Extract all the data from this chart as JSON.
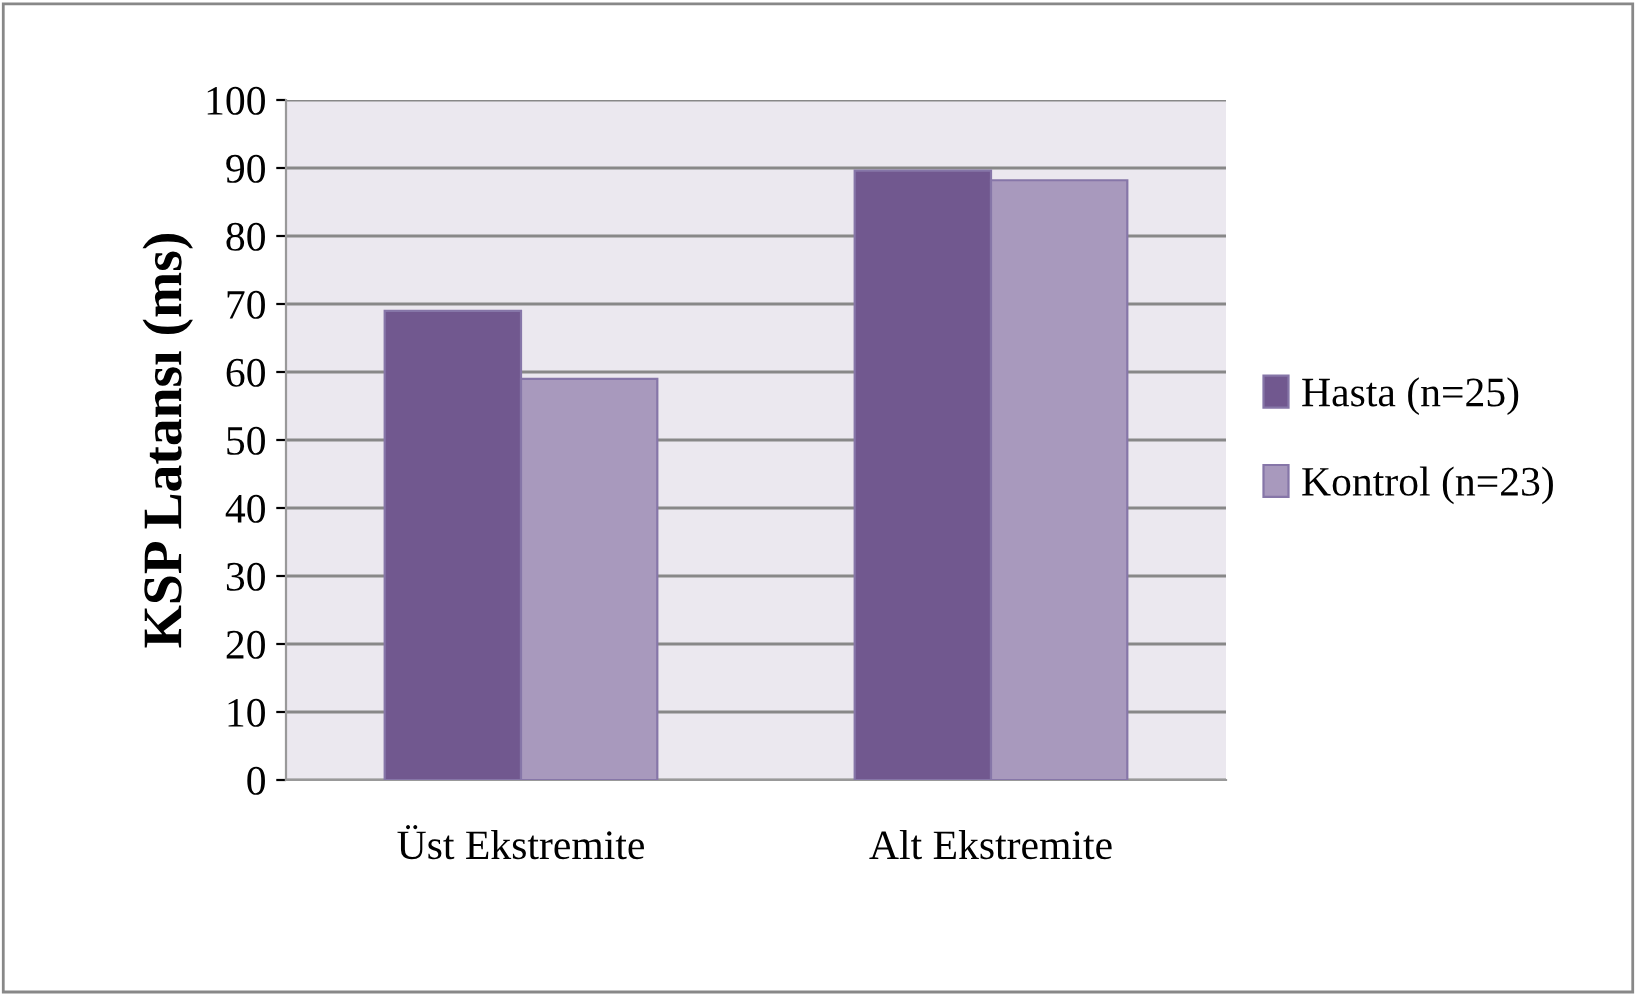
{
  "chart_data": {
    "type": "bar",
    "ylabel": "KSP Latansı (ms)",
    "categories": [
      "Üst Ekstremite",
      "Alt Ekstremite"
    ],
    "series": [
      {
        "name": "Hasta (n=25)",
        "color": "#71588f",
        "values": [
          69,
          89.6
        ]
      },
      {
        "name": "Kontrol (n=23)",
        "color": "#a899bd",
        "values": [
          59,
          88.2
        ]
      }
    ],
    "ylim": [
      0,
      100
    ],
    "yticks": [
      0,
      10,
      20,
      30,
      40,
      50,
      60,
      70,
      80,
      90,
      100
    ],
    "grid": "y",
    "legend": "right"
  }
}
